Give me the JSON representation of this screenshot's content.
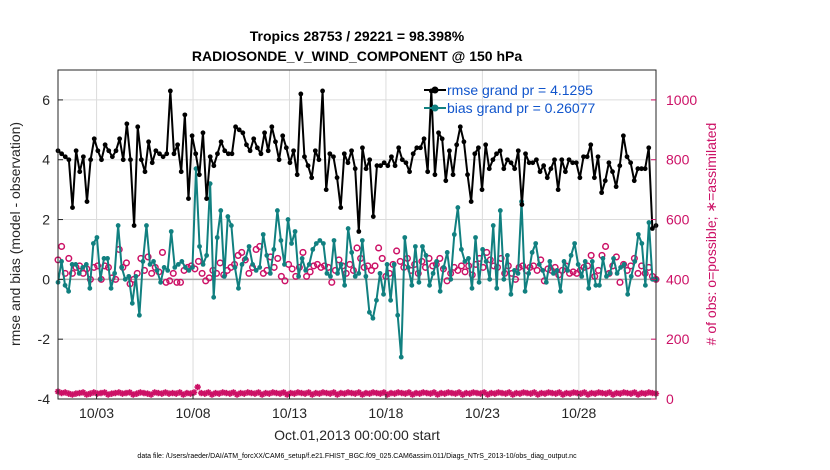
{
  "chart_data": {
    "type": "line",
    "title_line1": "Tropics 28753 / 29221 = 98.398%",
    "title_line2": "RADIOSONDE_V_WIND_COMPONENT @ 150 hPa",
    "xlabel": "Oct.01,2013 00:00:00 start",
    "ylabel_left": "rmse and bias (model - observation)",
    "ylabel_right": "# of obs: o=possible; ∗=assimilated",
    "footer": "data file: /Users/raeder/DAI/ATM_forcXX/CAM6_setup/f.e21.FHIST_BGC.f09_025.CAM6assim.011/Diags_NTrS_2013-10/obs_diag_output.nc",
    "xlim": [
      1,
      32
    ],
    "ylim_left": [
      -4,
      7
    ],
    "ylim_right": [
      0,
      1100
    ],
    "yticks_left": [
      -4,
      -2,
      0,
      2,
      4,
      6
    ],
    "yticks_right": [
      0,
      200,
      400,
      600,
      800,
      1000
    ],
    "xticks": [
      {
        "value": 3,
        "label": "10/03"
      },
      {
        "value": 8,
        "label": "10/08"
      },
      {
        "value": 13,
        "label": "10/13"
      },
      {
        "value": 18,
        "label": "10/18"
      },
      {
        "value": 23,
        "label": "10/23"
      },
      {
        "value": 28,
        "label": "10/28"
      }
    ],
    "colors": {
      "rmse": "#000000",
      "bias": "#118080",
      "obs": "#cc1166",
      "zero_line": "#aaaaaa",
      "legend_text": "#1155cc"
    },
    "series": [
      {
        "name": "rmse grand pr = 4.1295",
        "values": [
          4.3,
          4.2,
          4.1,
          4.0,
          2.4,
          4.3,
          3.6,
          4.1,
          2.6,
          4.0,
          4.7,
          4.3,
          4.0,
          4.5,
          4.3,
          4.1,
          4.3,
          4.7,
          4.0,
          5.2,
          4.0,
          1.8,
          5.1,
          4.0,
          3.6,
          4.6,
          3.9,
          4.3,
          4.2,
          4.1,
          4.2,
          6.3,
          4.2,
          4.5,
          3.6,
          5.5,
          2.7,
          4.8,
          4.2,
          3.5,
          4.9,
          2.7,
          4.1,
          3.8,
          4.2,
          4.6,
          4.3,
          4.2,
          4.2,
          5.1,
          5.0,
          4.9,
          4.5,
          4.3,
          4.7,
          4.4,
          4.2,
          4.9,
          4.3,
          5.1,
          4.6,
          4.0,
          4.8,
          4.4,
          3.9,
          4.3,
          3.5,
          6.2,
          4.1,
          3.8,
          3.4,
          4.3,
          4.0,
          6.3,
          3.0,
          4.2,
          4.1,
          3.4,
          2.4,
          4.2,
          3.9,
          4.3,
          3.7,
          1.6,
          4.4,
          3.7,
          4.0,
          2.1,
          3.8,
          3.8,
          3.9,
          3.8,
          4.1,
          3.8,
          4.4,
          4.0,
          3.9,
          3.6,
          4.2,
          4.4,
          4.4,
          4.7,
          3.6,
          6.3,
          3.5,
          4.9,
          4.7,
          3.3,
          4.3,
          3.5,
          4.5,
          5.1,
          4.6,
          3.5,
          2.6,
          4.2,
          4.4,
          3.0,
          4.5,
          3.7,
          4.0,
          4.2,
          4.3,
          3.7,
          4.0,
          3.9,
          3.7,
          4.3,
          2.5,
          4.2,
          3.9,
          3.9,
          4.0,
          3.6,
          3.8,
          3.4,
          3.7,
          4.0,
          3.0,
          4.0,
          3.6,
          4.0,
          3.9,
          3.9,
          3.4,
          4.1,
          4.1,
          4.5,
          3.4,
          4.1,
          2.9,
          3.3,
          3.9,
          3.6,
          3.1,
          3.8,
          4.8,
          4.1,
          3.9,
          3.3,
          3.7,
          3.7,
          3.7,
          4.4,
          1.7,
          1.8
        ]
      },
      {
        "name": "bias grand pr = 0.26077",
        "values": [
          -0.1,
          0.6,
          -0.2,
          -0.4,
          0.5,
          0.5,
          0.2,
          0.4,
          0.5,
          -0.3,
          1.2,
          1.4,
          0.0,
          0.7,
          0.7,
          -0.3,
          0.2,
          1.8,
          0.4,
          0.0,
          0.1,
          -0.8,
          0.1,
          -1.2,
          0.6,
          1.8,
          0.5,
          0.6,
          0.3,
          -0.1,
          0.4,
          0.3,
          1.6,
          0.4,
          0.5,
          0.6,
          0.4,
          0.3,
          0.4,
          3.7,
          1.1,
          0.5,
          0.8,
          3.2,
          -0.6,
          1.4,
          2.3,
          0.1,
          2.1,
          1.8,
          0.4,
          -0.3,
          0.5,
          0.7,
          1.1,
          0.5,
          0.3,
          0.4,
          1.5,
          0.8,
          0.2,
          1.0,
          2.3,
          1.3,
          0.5,
          2.0,
          1.2,
          1.6,
          0.1,
          0.7,
          0.3,
          0.5,
          1.0,
          1.2,
          1.3,
          1.2,
          0.2,
          0.1,
          1.3,
          0.2,
          0.5,
          -0.2,
          1.7,
          0.9,
          0.1,
          0.2,
          1.3,
          0.1,
          -1.1,
          -1.3,
          -0.7,
          0.2,
          -0.5,
          0.5,
          -0.7,
          0.5,
          -1.2,
          -2.6,
          1.4,
          0.4,
          -0.2,
          1.1,
          -0.1,
          1.1,
          0.8,
          -0.2,
          0.2,
          0.6,
          -0.4,
          0.4,
          0.9,
          0.0,
          1.5,
          2.4,
          1.0,
          0.6,
          0.7,
          -0.3,
          1.4,
          -0.1,
          1.0,
          0.6,
          0.0,
          1.8,
          -0.3,
          2.3,
          0.0,
          0.8,
          -0.5,
          0.3,
          0.2,
          2.6,
          -0.4,
          0.2,
          0.9,
          1.2,
          0.5,
          0.3,
          -0.1,
          0.6,
          0.2,
          0.3,
          -0.4,
          0.6,
          0.3,
          0.8,
          1.2,
          0.5,
          0.1,
          0.6,
          -0.3,
          0.6,
          -0.2,
          -0.2,
          0.7,
          0.1,
          0.2,
          0.7,
          0.2,
          0.4,
          0.5,
          -0.5,
          0.1,
          0.6,
          1.5,
          1.2,
          -0.2,
          1.9,
          0.0,
          0.0
        ]
      },
      {
        "name": "obs possible (o)",
        "values": [
          465,
          510,
          420,
          470,
          420,
          440,
          445,
          420,
          435,
          400,
          440,
          445,
          400,
          445,
          440,
          405,
          400,
          500,
          440,
          455,
          385,
          400,
          420,
          470,
          430,
          475,
          420,
          440,
          425,
          490,
          390,
          395,
          420,
          390,
          390,
          430,
          440,
          445,
          435,
          460,
          420,
          395,
          405,
          430,
          420,
          455,
          415,
          430,
          440,
          450,
          480,
          490,
          465,
          420,
          440,
          500,
          510,
          420,
          430,
          475,
          440,
          470,
          410,
          395,
          450,
          435,
          410,
          440,
          490,
          410,
          425,
          445,
          450,
          440,
          445,
          440,
          390,
          430,
          465,
          445,
          420,
          450,
          430,
          505,
          470,
          440,
          445,
          430,
          445,
          505,
          470,
          410,
          420,
          450,
          495,
          460,
          440,
          470,
          430,
          450,
          420,
          460,
          440,
          470,
          445,
          450,
          470,
          435,
          395,
          420,
          440,
          430,
          445,
          425,
          445,
          415,
          450,
          470,
          440,
          490,
          465,
          445,
          440,
          470,
          420,
          445,
          420,
          400,
          440,
          445,
          430,
          440,
          445,
          430,
          465,
          395,
          435,
          430,
          440,
          415,
          430,
          445,
          420,
          425,
          420,
          430,
          440,
          445,
          480,
          410,
          430,
          480,
          510,
          420,
          445,
          475,
          390,
          450,
          430,
          445,
          470,
          420,
          445,
          420,
          440,
          410,
          400
        ]
      },
      {
        "name": "obs assimilated (∗)",
        "values": [
          25,
          20,
          22,
          18,
          15,
          18,
          20,
          22,
          15,
          18,
          22,
          18,
          20,
          22,
          15,
          18,
          20,
          22,
          18,
          20,
          22,
          15,
          18,
          22,
          20,
          18,
          15,
          22,
          20,
          18,
          22,
          18,
          20,
          18,
          22,
          15,
          20,
          18,
          22,
          40,
          20,
          18,
          22,
          15,
          20,
          18,
          22,
          20,
          18,
          22,
          15,
          20,
          18,
          22,
          20,
          18,
          22,
          15,
          20,
          18,
          22,
          20,
          18,
          22,
          15,
          20,
          18,
          22,
          20,
          18,
          22,
          15,
          20,
          18,
          22,
          20,
          18,
          22,
          15,
          20,
          18,
          22,
          20,
          18,
          22,
          15,
          20,
          18,
          22,
          20,
          18,
          22,
          15,
          20,
          18,
          22,
          20,
          18,
          22,
          15,
          20,
          18,
          22,
          20,
          18,
          22,
          15,
          20,
          18,
          22,
          20,
          18,
          22,
          15,
          20,
          18,
          22,
          20,
          18,
          22,
          15,
          20,
          18,
          22,
          20,
          18,
          22,
          15,
          20,
          18,
          22,
          20,
          18,
          22,
          15,
          20,
          18,
          22,
          20,
          18,
          22,
          15,
          20,
          18,
          22,
          20,
          18,
          22,
          15,
          20,
          18,
          22,
          20,
          18,
          22,
          15,
          20,
          18,
          22,
          20,
          18,
          22,
          15,
          20,
          18,
          22,
          20,
          18
        ]
      }
    ]
  }
}
